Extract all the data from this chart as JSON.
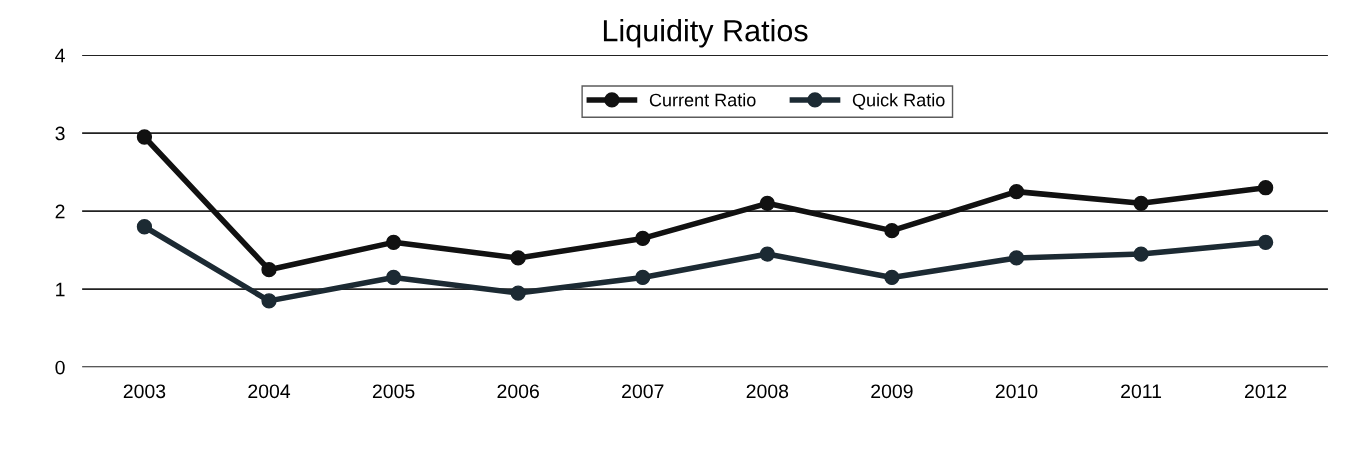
{
  "chart_data": {
    "type": "line",
    "title": "Liquidity Ratios",
    "categories": [
      "2003",
      "2004",
      "2005",
      "2006",
      "2007",
      "2008",
      "2009",
      "2010",
      "2011",
      "2012"
    ],
    "series": [
      {
        "name": "Current Ratio",
        "color": "#111111",
        "values": [
          2.95,
          1.25,
          1.6,
          1.4,
          1.65,
          2.1,
          1.75,
          2.25,
          2.1,
          2.3
        ]
      },
      {
        "name": "Quick Ratio",
        "color": "#1c2a33",
        "values": [
          1.8,
          0.85,
          1.15,
          0.95,
          1.15,
          1.45,
          1.15,
          1.4,
          1.45,
          1.6
        ]
      }
    ],
    "ylim": [
      0,
      4
    ],
    "yticks": [
      0,
      1,
      2,
      3,
      4
    ],
    "grid": "y",
    "legend": "top",
    "marker": "circle",
    "line_style": "solid"
  }
}
